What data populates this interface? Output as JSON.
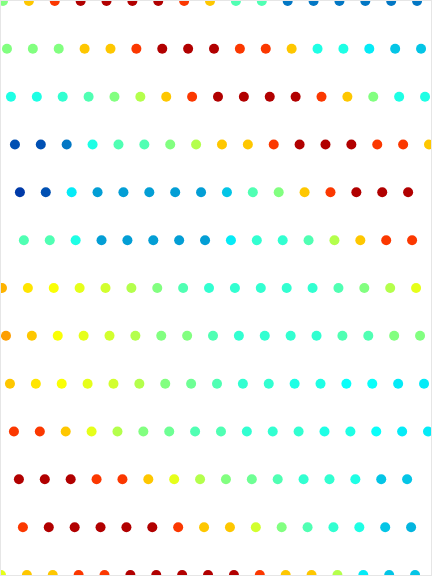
{
  "chart_data": {
    "type": "scatter",
    "marker": "circle",
    "color": "Jet",
    "clim": [
      0,
      1
    ],
    "xlim": [
      0,
      432
    ],
    "ylim": [
      576,
      0
    ],
    "grid": false,
    "tick_labels": false,
    "x": [
      2,
      28,
      54,
      80,
      106,
      132,
      158,
      184,
      210,
      236,
      262,
      288,
      314,
      340,
      366,
      392,
      418,
      6,
      32,
      58,
      84,
      110,
      136,
      162,
      188,
      214,
      240,
      266,
      292,
      318,
      344,
      370,
      396,
      422,
      10,
      36,
      62,
      88,
      114,
      140,
      166,
      192,
      218,
      244,
      270,
      296,
      322,
      348,
      374,
      400,
      426,
      14,
      40,
      66,
      92,
      118,
      144,
      170,
      196,
      222,
      248,
      274,
      300,
      326,
      352,
      378,
      404,
      430,
      19,
      45,
      71,
      97,
      123,
      149,
      175,
      201,
      227,
      253,
      279,
      305,
      331,
      357,
      383,
      409,
      23,
      49,
      75,
      101,
      127,
      153,
      179,
      205,
      231,
      257,
      283,
      309,
      335,
      361,
      387,
      413,
      1,
      27,
      53,
      79,
      105,
      131,
      157,
      183,
      209,
      235,
      261,
      287,
      313,
      339,
      365,
      391,
      417,
      5,
      31,
      57,
      83,
      109,
      135,
      161,
      187,
      213,
      239,
      265,
      291,
      317,
      343,
      369,
      395,
      421,
      9,
      35,
      61,
      87,
      113,
      139,
      165,
      191,
      217,
      243,
      269,
      295,
      321,
      347,
      373,
      399,
      425,
      13,
      39,
      65,
      91,
      117,
      143,
      169,
      195,
      221,
      247,
      273,
      299,
      325,
      351,
      377,
      403,
      429,
      18,
      44,
      70,
      96,
      122,
      148,
      174,
      200,
      226,
      252,
      278,
      304,
      330,
      356,
      382,
      408,
      22,
      48,
      74,
      100,
      126,
      152,
      178,
      204,
      230,
      256,
      282,
      308,
      334,
      360,
      386,
      412,
      0,
      26,
      52,
      78,
      104,
      130,
      156,
      182,
      208,
      234,
      260,
      286,
      312,
      338,
      364,
      390,
      416
    ],
    "y": [
      0,
      0,
      0,
      0,
      0,
      0,
      0,
      0,
      0,
      0,
      0,
      0,
      0,
      0,
      0,
      0,
      0,
      48,
      48,
      48,
      48,
      48,
      48,
      48,
      48,
      48,
      48,
      48,
      48,
      48,
      48,
      48,
      48,
      48,
      96,
      96,
      96,
      96,
      96,
      96,
      96,
      96,
      96,
      96,
      96,
      96,
      96,
      96,
      96,
      96,
      96,
      144,
      144,
      144,
      144,
      144,
      144,
      144,
      144,
      144,
      144,
      144,
      144,
      144,
      144,
      144,
      144,
      144,
      192,
      192,
      192,
      192,
      192,
      192,
      192,
      192,
      192,
      192,
      192,
      192,
      192,
      192,
      192,
      192,
      240,
      240,
      240,
      240,
      240,
      240,
      240,
      240,
      240,
      240,
      240,
      240,
      240,
      240,
      240,
      240,
      288,
      288,
      288,
      288,
      288,
      288,
      288,
      288,
      288,
      288,
      288,
      288,
      288,
      288,
      288,
      288,
      288,
      336,
      336,
      336,
      336,
      336,
      336,
      336,
      336,
      336,
      336,
      336,
      336,
      336,
      336,
      336,
      336,
      336,
      384,
      384,
      384,
      384,
      384,
      384,
      384,
      384,
      384,
      384,
      384,
      384,
      384,
      384,
      384,
      384,
      384,
      432,
      432,
      432,
      432,
      432,
      432,
      432,
      432,
      432,
      432,
      432,
      432,
      432,
      432,
      432,
      432,
      432,
      480,
      480,
      480,
      480,
      480,
      480,
      480,
      480,
      480,
      480,
      480,
      480,
      480,
      480,
      480,
      480,
      528,
      528,
      528,
      528,
      528,
      528,
      528,
      528,
      528,
      528,
      528,
      528,
      528,
      528,
      528,
      528,
      576,
      576,
      576,
      576,
      576,
      576,
      576,
      576,
      576,
      576,
      576,
      576,
      576,
      576,
      576,
      576,
      576
    ],
    "values": [
      0.5,
      0.68,
      0.82,
      0.95,
      0.95,
      0.95,
      0.95,
      0.82,
      0.68,
      0.45,
      0.45,
      0.2,
      0.2,
      0.2,
      0.2,
      0.2,
      0.2,
      0.5,
      0.5,
      0.5,
      0.68,
      0.68,
      0.82,
      0.95,
      0.95,
      0.95,
      0.82,
      0.82,
      0.68,
      0.4,
      0.4,
      0.35,
      0.3,
      0.3,
      0.4,
      0.4,
      0.42,
      0.45,
      0.5,
      0.55,
      0.68,
      0.82,
      0.95,
      0.95,
      0.95,
      0.95,
      0.82,
      0.68,
      0.5,
      0.4,
      0.4,
      0.15,
      0.15,
      0.2,
      0.4,
      0.45,
      0.45,
      0.5,
      0.55,
      0.68,
      0.68,
      0.82,
      0.95,
      0.95,
      0.95,
      0.82,
      0.82,
      0.68,
      0.12,
      0.15,
      0.35,
      0.25,
      0.25,
      0.25,
      0.25,
      0.25,
      0.3,
      0.45,
      0.5,
      0.68,
      0.82,
      0.95,
      0.95,
      0.95,
      0.45,
      0.45,
      0.4,
      0.25,
      0.25,
      0.25,
      0.25,
      0.25,
      0.35,
      0.42,
      0.42,
      0.45,
      0.55,
      0.68,
      0.82,
      0.82,
      0.7,
      0.65,
      0.62,
      0.6,
      0.58,
      0.55,
      0.5,
      0.45,
      0.42,
      0.42,
      0.42,
      0.42,
      0.42,
      0.45,
      0.5,
      0.55,
      0.6,
      0.72,
      0.68,
      0.62,
      0.6,
      0.58,
      0.55,
      0.5,
      0.5,
      0.45,
      0.42,
      0.42,
      0.42,
      0.42,
      0.45,
      0.45,
      0.5,
      0.5,
      0.68,
      0.65,
      0.62,
      0.6,
      0.58,
      0.55,
      0.5,
      0.48,
      0.45,
      0.42,
      0.42,
      0.4,
      0.4,
      0.38,
      0.38,
      0.35,
      0.35,
      0.82,
      0.82,
      0.68,
      0.6,
      0.55,
      0.5,
      0.48,
      0.45,
      0.45,
      0.42,
      0.42,
      0.42,
      0.4,
      0.4,
      0.38,
      0.35,
      0.35,
      0.95,
      0.95,
      0.95,
      0.82,
      0.82,
      0.68,
      0.6,
      0.55,
      0.5,
      0.48,
      0.45,
      0.42,
      0.42,
      0.4,
      0.3,
      0.3,
      0.82,
      0.95,
      0.95,
      0.95,
      0.95,
      0.95,
      0.82,
      0.68,
      0.68,
      0.58,
      0.5,
      0.45,
      0.42,
      0.4,
      0.3,
      0.28,
      0.6,
      0.68,
      0.68,
      0.82,
      0.82,
      0.95,
      0.95,
      0.95,
      0.95,
      0.95,
      0.82,
      0.68,
      0.68,
      0.55,
      0.35,
      0.3,
      0.3
    ]
  }
}
